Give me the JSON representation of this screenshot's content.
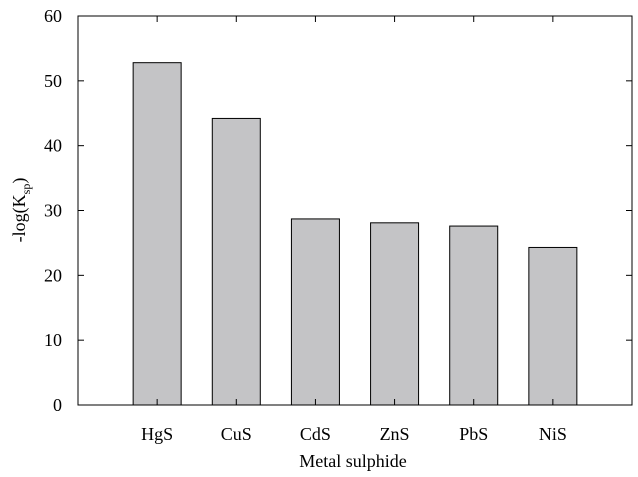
{
  "chart_data": {
    "type": "bar",
    "title": "",
    "xlabel": "Metal sulphide",
    "ylabel_main": "-log(K",
    "ylabel_sub": "sp",
    "ylabel_close": ")",
    "ylabel": "-log(Ksp)",
    "categories": [
      "HgS",
      "CuS",
      "CdS",
      "ZnS",
      "PbS",
      "NiS"
    ],
    "values": [
      52.8,
      44.2,
      28.7,
      28.1,
      27.6,
      24.3
    ],
    "ylim": [
      0,
      60
    ],
    "yticks": [
      0,
      10,
      20,
      30,
      40,
      50,
      60
    ],
    "grid": false,
    "bar_color": "#c4c4c6",
    "edge_color": "#000000"
  }
}
